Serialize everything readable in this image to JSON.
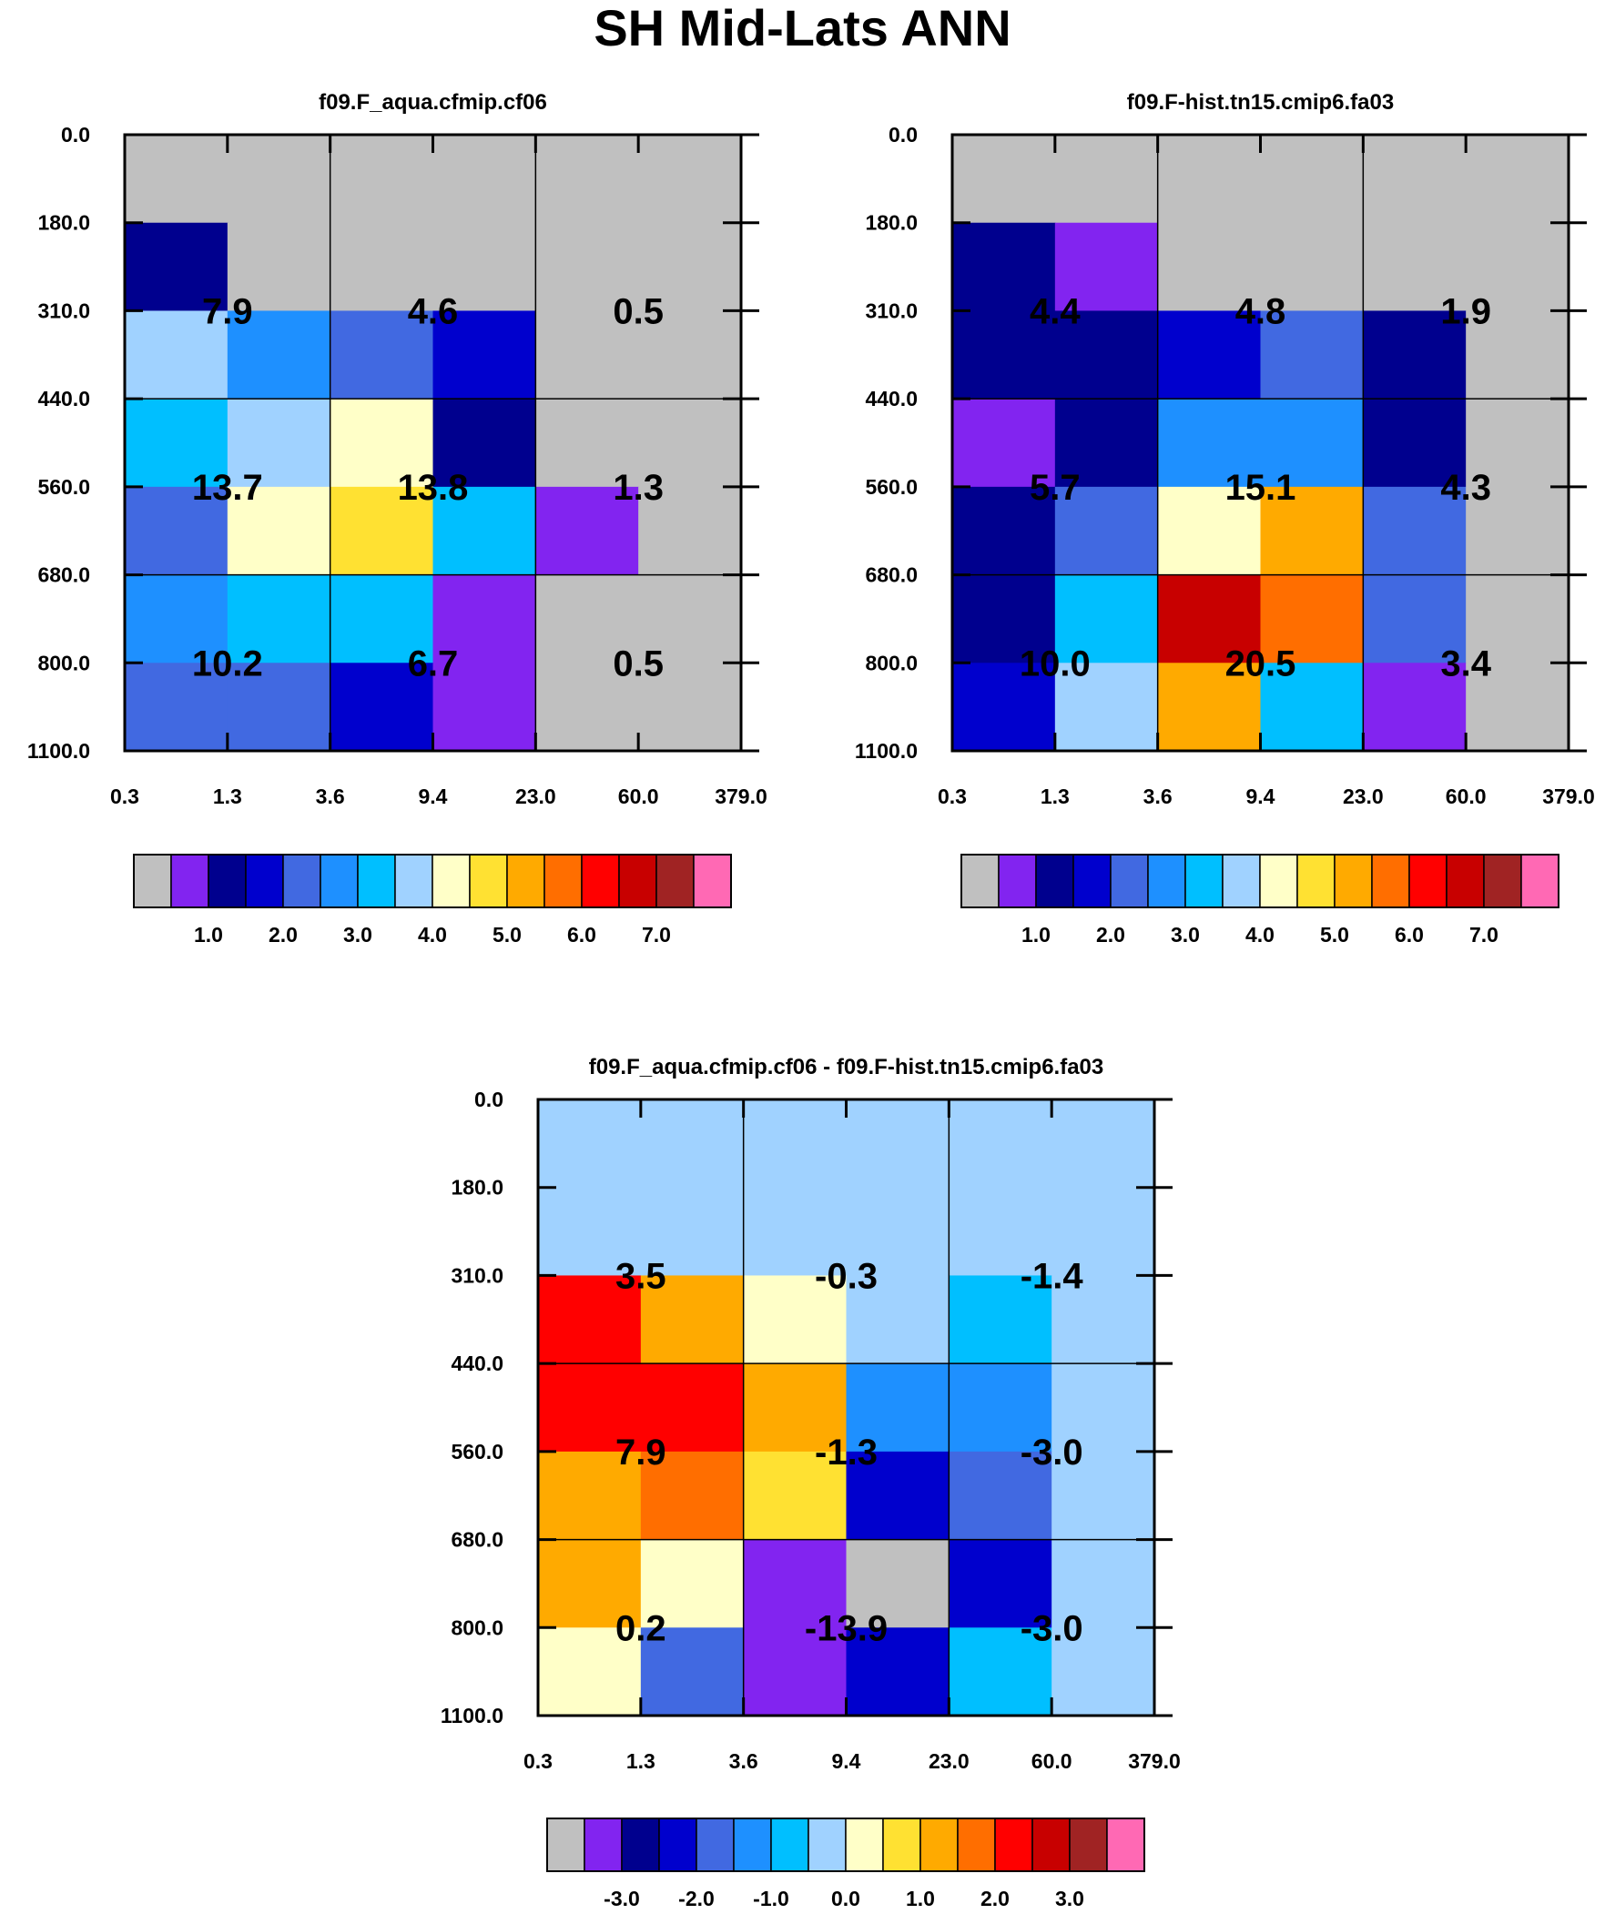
{
  "title": "SH Mid-Lats ANN",
  "colors": {
    "abs_palette": [
      "#c0c0c0",
      "#8224f0",
      "#00008e",
      "#0000cd",
      "#4169e1",
      "#1e90ff",
      "#00bfff",
      "#a0d2ff",
      "#ffffc8",
      "#ffe132",
      "#ffaa00",
      "#ff6e00",
      "#ff0000",
      "#c80000",
      "#a02323",
      "#ff69b4"
    ],
    "diff_palette": [
      "#c0c0c0",
      "#8224f0",
      "#00008e",
      "#0000cd",
      "#4169e1",
      "#1e90ff",
      "#00bfff",
      "#a0d2ff",
      "#ffffc8",
      "#ffe132",
      "#ffaa00",
      "#ff6e00",
      "#ff0000",
      "#c80000",
      "#a02323",
      "#ff69b4"
    ]
  },
  "chart_data": [
    {
      "type": "heatmap",
      "id": "panel-test",
      "title": "f09.F_aqua.cfmip.cf06",
      "x_ticks": [
        "0.3",
        "1.3",
        "3.6",
        "9.4",
        "23.0",
        "60.0",
        "379.0"
      ],
      "y_ticks": [
        "0.0",
        "180.0",
        "310.0",
        "440.0",
        "560.0",
        "680.0",
        "800.0",
        "1100.0"
      ],
      "cells": [
        [
          0,
          0,
          0,
          0,
          0,
          0
        ],
        [
          2,
          0,
          0,
          0,
          0,
          0
        ],
        [
          7,
          5,
          4,
          3,
          0,
          0
        ],
        [
          6,
          7,
          8,
          2,
          0,
          0
        ],
        [
          4,
          8,
          9,
          6,
          1,
          0
        ],
        [
          5,
          6,
          6,
          1,
          0,
          0
        ],
        [
          4,
          4,
          3,
          1,
          0,
          0
        ]
      ],
      "group_values": [
        [
          "7.9",
          "4.6",
          "0.5"
        ],
        [
          "13.7",
          "13.8",
          "1.3"
        ],
        [
          "10.2",
          "6.7",
          "0.5"
        ]
      ],
      "legend": {
        "labels": [
          "1.0",
          "2.0",
          "3.0",
          "4.0",
          "5.0",
          "6.0",
          "7.0"
        ]
      }
    },
    {
      "type": "heatmap",
      "id": "panel-control",
      "title": "f09.F-hist.tn15.cmip6.fa03",
      "x_ticks": [
        "0.3",
        "1.3",
        "3.6",
        "9.4",
        "23.0",
        "60.0",
        "379.0"
      ],
      "y_ticks": [
        "0.0",
        "180.0",
        "310.0",
        "440.0",
        "560.0",
        "680.0",
        "800.0",
        "1100.0"
      ],
      "cells": [
        [
          0,
          0,
          0,
          0,
          0,
          0
        ],
        [
          2,
          1,
          0,
          0,
          0,
          0
        ],
        [
          2,
          2,
          3,
          4,
          2,
          0
        ],
        [
          1,
          2,
          5,
          5,
          2,
          0
        ],
        [
          2,
          4,
          8,
          10,
          4,
          0
        ],
        [
          2,
          6,
          13,
          11,
          4,
          0
        ],
        [
          3,
          7,
          10,
          6,
          1,
          0
        ]
      ],
      "group_values": [
        [
          "4.4",
          "4.8",
          "1.9"
        ],
        [
          "5.7",
          "15.1",
          "4.3"
        ],
        [
          "10.0",
          "20.5",
          "3.4"
        ]
      ],
      "legend": {
        "labels": [
          "1.0",
          "2.0",
          "3.0",
          "4.0",
          "5.0",
          "6.0",
          "7.0"
        ]
      }
    },
    {
      "type": "heatmap",
      "id": "panel-diff",
      "title": "f09.F_aqua.cfmip.cf06 - f09.F-hist.tn15.cmip6.fa03",
      "x_ticks": [
        "0.3",
        "1.3",
        "3.6",
        "9.4",
        "23.0",
        "60.0",
        "379.0"
      ],
      "y_ticks": [
        "0.0",
        "180.0",
        "310.0",
        "440.0",
        "560.0",
        "680.0",
        "800.0",
        "1100.0"
      ],
      "cells": [
        [
          7,
          7,
          7,
          7,
          7,
          7
        ],
        [
          7,
          7,
          7,
          7,
          7,
          7
        ],
        [
          12,
          10,
          8,
          7,
          6,
          7
        ],
        [
          12,
          12,
          10,
          5,
          5,
          7
        ],
        [
          10,
          11,
          9,
          3,
          4,
          7
        ],
        [
          10,
          8,
          1,
          0,
          3,
          7
        ],
        [
          8,
          4,
          1,
          3,
          6,
          7
        ]
      ],
      "group_values": [
        [
          "3.5",
          "-0.3",
          "-1.4"
        ],
        [
          "7.9",
          "-1.3",
          "-3.0"
        ],
        [
          "0.2",
          "-13.9",
          "-3.0"
        ]
      ],
      "legend": {
        "labels": [
          "-3.0",
          "-2.0",
          "-1.0",
          "0.0",
          "1.0",
          "2.0",
          "3.0"
        ]
      }
    }
  ]
}
